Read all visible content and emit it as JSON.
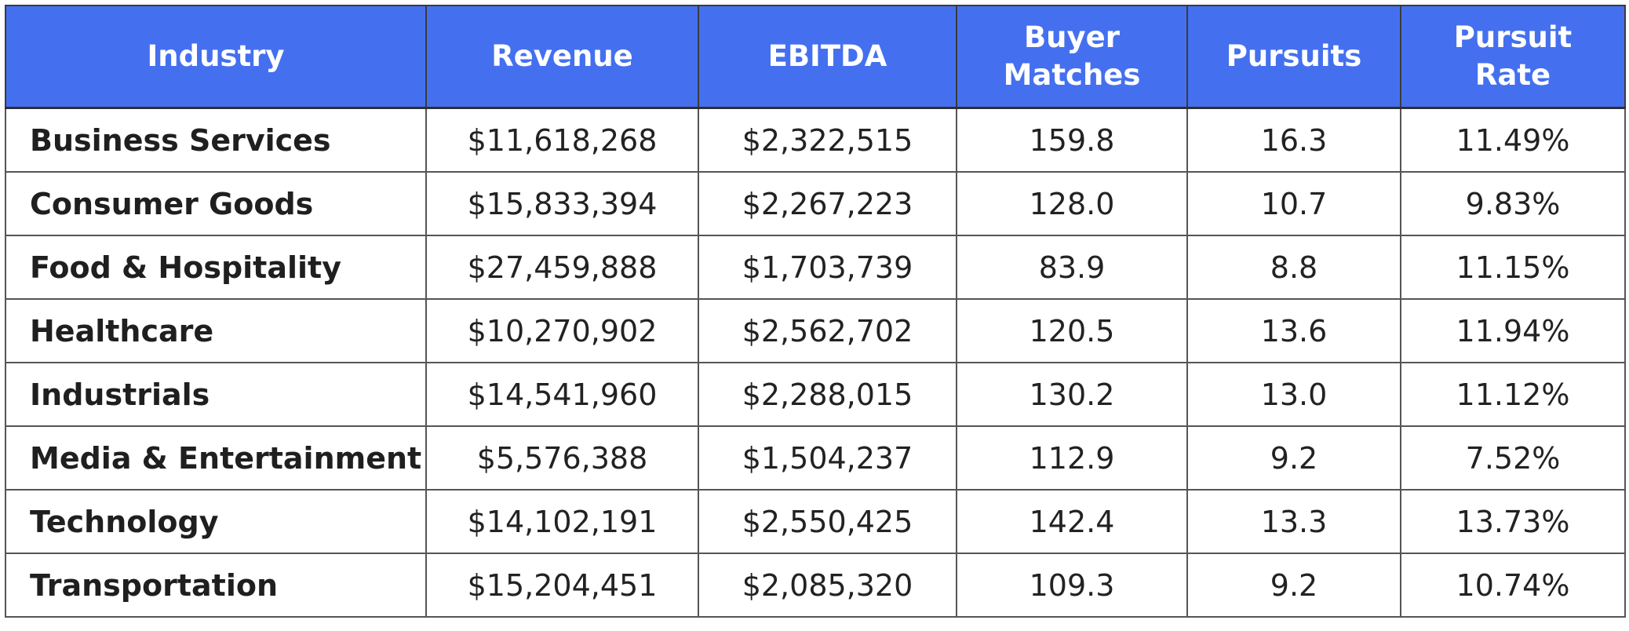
{
  "table": {
    "headers": [
      [
        "Industry"
      ],
      [
        "Revenue"
      ],
      [
        "EBITDA"
      ],
      [
        "Buyer",
        "Matches"
      ],
      [
        "Pursuits"
      ],
      [
        "Pursuit",
        "Rate"
      ]
    ],
    "header_color": "#4470f0",
    "rows": [
      [
        "Business Services",
        "$11,618,268",
        "$2,322,515",
        "159.8",
        "16.3",
        "11.49%"
      ],
      [
        "Consumer Goods",
        "$15,833,394",
        "$2,267,223",
        "128.0",
        "10.7",
        "9.83%"
      ],
      [
        "Food & Hospitality",
        "$27,459,888",
        "$1,703,739",
        "83.9",
        "8.8",
        "11.15%"
      ],
      [
        "Healthcare",
        "$10,270,902",
        "$2,562,702",
        "120.5",
        "13.6",
        "11.94%"
      ],
      [
        "Industrials",
        "$14,541,960",
        "$2,288,015",
        "130.2",
        "13.0",
        "11.12%"
      ],
      [
        "Media & Entertainment",
        "$5,576,388",
        "$1,504,237",
        "112.9",
        "9.2",
        "7.52%"
      ],
      [
        "Technology",
        "$14,102,191",
        "$2,550,425",
        "142.4",
        "13.3",
        "13.73%"
      ],
      [
        "Transportation",
        "$15,204,451",
        "$2,085,320",
        "109.3",
        "9.2",
        "10.74%"
      ]
    ]
  }
}
